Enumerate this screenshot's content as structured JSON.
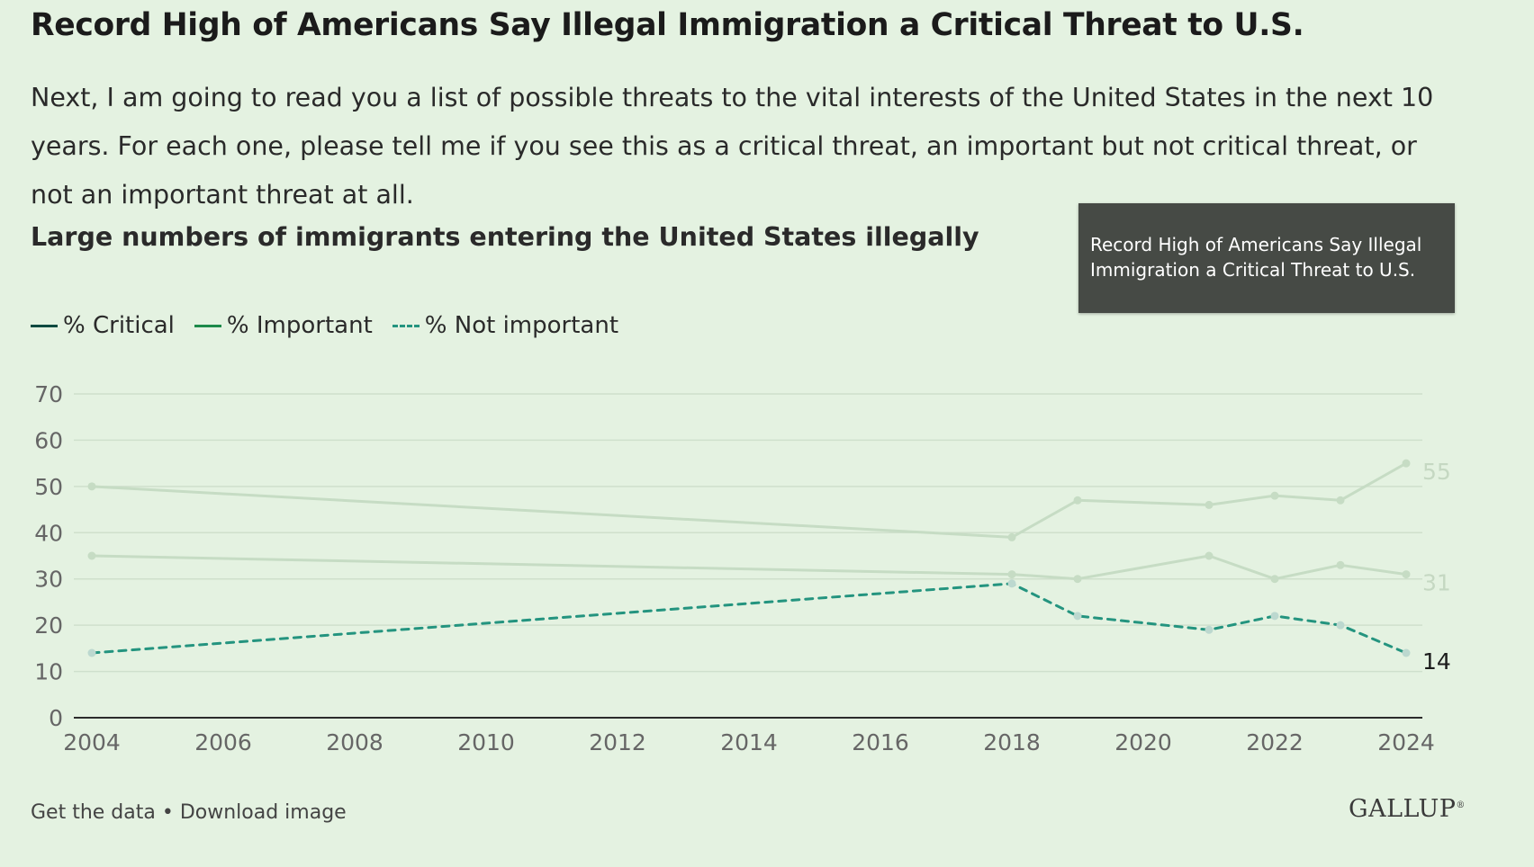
{
  "header": {
    "title": "Record High of Americans Say Illegal Immigration a Critical Threat to U.S.",
    "subtitle": "Next, I am going to read you a list of possible threats to the vital interests of the United States in the next 10 years. For each one, please tell me if you see this as a critical threat, an important but not critical threat, or not an important threat at all.",
    "question": "Large numbers of immigrants entering the United States illegally"
  },
  "tooltip": {
    "text": "Record High of Americans Say Illegal Immigration a Critical Threat to U.S."
  },
  "legend": {
    "items": [
      {
        "label": "% Critical"
      },
      {
        "label": "% Important"
      },
      {
        "label": "% Not important"
      }
    ]
  },
  "footer": {
    "get_data": "Get the data",
    "separator": " • ",
    "download": "Download image",
    "logo_text": "GALLUP",
    "logo_mark": "®"
  },
  "colors": {
    "background": "#e4f2e1",
    "critical": "#0d4a40",
    "important": "#1d8a4a",
    "not_important": "#24947f",
    "faded_series": "#c6dcc4",
    "grid": "#cfe0cc",
    "axis": "#2b2b2b",
    "tick_text": "#666666"
  },
  "chart_data": {
    "type": "line",
    "x": [
      2004,
      2018,
      2019,
      2021,
      2022,
      2023,
      2024
    ],
    "series": [
      {
        "name": "% Critical",
        "values": [
          50,
          39,
          47,
          46,
          48,
          47,
          55
        ],
        "style": "solid",
        "highlighted": false,
        "end_label": "55"
      },
      {
        "name": "% Important",
        "values": [
          35,
          31,
          30,
          35,
          30,
          33,
          31
        ],
        "style": "solid",
        "highlighted": false,
        "end_label": "31"
      },
      {
        "name": "% Not important",
        "values": [
          14,
          29,
          22,
          19,
          22,
          20,
          14
        ],
        "style": "dashed",
        "highlighted": true,
        "end_label": "14"
      }
    ],
    "xlim": [
      2004,
      2024
    ],
    "ylim": [
      0,
      70
    ],
    "x_ticks": [
      "2004",
      "2006",
      "2008",
      "2010",
      "2012",
      "2014",
      "2016",
      "2018",
      "2020",
      "2022",
      "2024"
    ],
    "y_ticks": [
      "0",
      "10",
      "20",
      "30",
      "40",
      "50",
      "60",
      "70"
    ],
    "grid": true
  }
}
